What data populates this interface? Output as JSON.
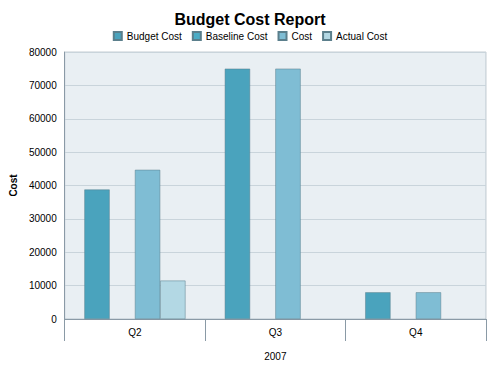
{
  "chart_data": {
    "type": "bar",
    "title": "Budget Cost Report",
    "x_label": "2007",
    "y_label": "Cost",
    "categories": [
      "Q2",
      "Q3",
      "Q4"
    ],
    "series": [
      {
        "name": "Budget Cost",
        "color": "#4aa3bd",
        "values": [
          38800,
          75000,
          8000
        ]
      },
      {
        "name": "Baseline Cost",
        "color": "#4bacc6",
        "values": [
          null,
          null,
          null
        ]
      },
      {
        "name": "Cost",
        "color": "#7fbdd4",
        "values": [
          44700,
          75000,
          8000
        ]
      },
      {
        "name": "Actual Cost",
        "color": "#b3d8e4",
        "values": [
          11500,
          null,
          null
        ]
      }
    ],
    "ylim": [
      0,
      80000
    ],
    "yticks": [
      0,
      10000,
      20000,
      30000,
      40000,
      50000,
      60000,
      70000,
      80000
    ],
    "grid": true,
    "legend": "top"
  }
}
